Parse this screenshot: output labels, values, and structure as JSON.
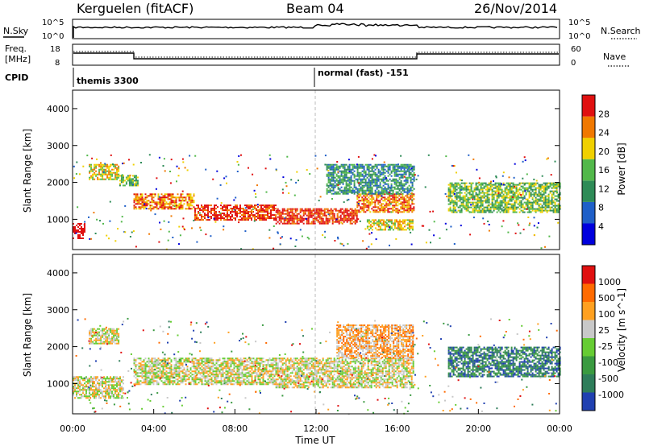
{
  "header": {
    "station": "Kerguelen (fitACF)",
    "beam": "Beam 04",
    "date": "26/Nov/2014"
  },
  "sky_panel": {
    "left_label": "N.Sky",
    "right_label": "N.Search",
    "left_ticks": [
      "10^5",
      "10^0"
    ],
    "right_ticks": [
      "10^5",
      "10^0"
    ]
  },
  "freq_panel": {
    "left_label_1": "Freq.",
    "left_label_2": "[MHz]",
    "left_ticks": [
      "18",
      "8"
    ],
    "right_label": "Nave",
    "right_ticks": [
      "60",
      "0"
    ]
  },
  "cpid": {
    "label": "CPID",
    "segments": [
      {
        "name": "themis 3300",
        "start_hour": 0
      },
      {
        "name": "normal (fast) -151",
        "start_hour": 12
      }
    ]
  },
  "x_axis": {
    "label": "Time UT",
    "ticks": [
      "00:00",
      "04:00",
      "08:00",
      "12:00",
      "16:00",
      "20:00",
      "00:00"
    ]
  },
  "chart_data": [
    {
      "type": "heatmap",
      "title": "",
      "xlabel": "Time UT",
      "ylabel": "Slant Range [km]",
      "xlim": [
        0,
        24
      ],
      "ylim": [
        180,
        4500
      ],
      "y_ticks": [
        "1000",
        "2000",
        "3000",
        "4000"
      ],
      "colorbar": {
        "label": "Power [dB]",
        "ticks": [
          "28",
          "24",
          "20",
          "16",
          "12",
          "8",
          "4"
        ],
        "colors": [
          "#0000dd",
          "#1f5fc8",
          "#2e8b57",
          "#52b84a",
          "#f0d000",
          "#f07800",
          "#e01010"
        ]
      },
      "bands": [
        {
          "t0": 0.0,
          "t1": 0.6,
          "r0": 500,
          "r1": 900,
          "level": 7
        },
        {
          "t0": 0.8,
          "t1": 2.3,
          "r0": 2100,
          "r1": 2500,
          "level": 4
        },
        {
          "t0": 2.3,
          "t1": 3.2,
          "r0": 1900,
          "r1": 2200,
          "level": 3
        },
        {
          "t0": 3.0,
          "t1": 6.0,
          "r0": 1300,
          "r1": 1700,
          "level": 5
        },
        {
          "t0": 6.0,
          "t1": 10.0,
          "r0": 1000,
          "r1": 1400,
          "level": 6
        },
        {
          "t0": 10.0,
          "t1": 14.0,
          "r0": 900,
          "r1": 1300,
          "level": 6
        },
        {
          "t0": 14.0,
          "t1": 16.8,
          "r0": 1200,
          "r1": 1700,
          "level": 5
        },
        {
          "t0": 12.5,
          "t1": 16.8,
          "r0": 1700,
          "r1": 2500,
          "level": 2
        },
        {
          "t0": 14.5,
          "t1": 16.8,
          "r0": 700,
          "r1": 1000,
          "level": 4
        },
        {
          "t0": 18.5,
          "t1": 24.0,
          "r0": 1200,
          "r1": 2000,
          "level": 3
        }
      ]
    },
    {
      "type": "heatmap",
      "title": "",
      "xlabel": "Time UT",
      "ylabel": "Slant Range [km]",
      "xlim": [
        0,
        24
      ],
      "ylim": [
        180,
        4500
      ],
      "y_ticks": [
        "1000",
        "2000",
        "3000",
        "4000"
      ],
      "colorbar": {
        "label": "Velocity [m s^-1]",
        "ticks": [
          "1000",
          "500",
          "100",
          "25",
          "-25",
          "-100",
          "-500",
          "-1000"
        ],
        "colors": [
          "#2040b0",
          "#2e7d5a",
          "#3a9a40",
          "#66cc33",
          "#c8c8c8",
          "#ffa020",
          "#ff6a00",
          "#e01010"
        ]
      },
      "bands": [
        {
          "t0": 0.0,
          "t1": 2.5,
          "r0": 600,
          "r1": 1200,
          "level": 4
        },
        {
          "t0": 0.8,
          "t1": 2.3,
          "r0": 2100,
          "r1": 2500,
          "level": 4
        },
        {
          "t0": 3.0,
          "t1": 10.0,
          "r0": 1000,
          "r1": 1700,
          "level": 4
        },
        {
          "t0": 10.0,
          "t1": 16.8,
          "r0": 900,
          "r1": 1700,
          "level": 4
        },
        {
          "t0": 13.0,
          "t1": 16.8,
          "r0": 1700,
          "r1": 2600,
          "level": 5
        },
        {
          "t0": 18.5,
          "t1": 24.0,
          "r0": 1200,
          "r1": 2000,
          "level": 1
        }
      ]
    }
  ]
}
